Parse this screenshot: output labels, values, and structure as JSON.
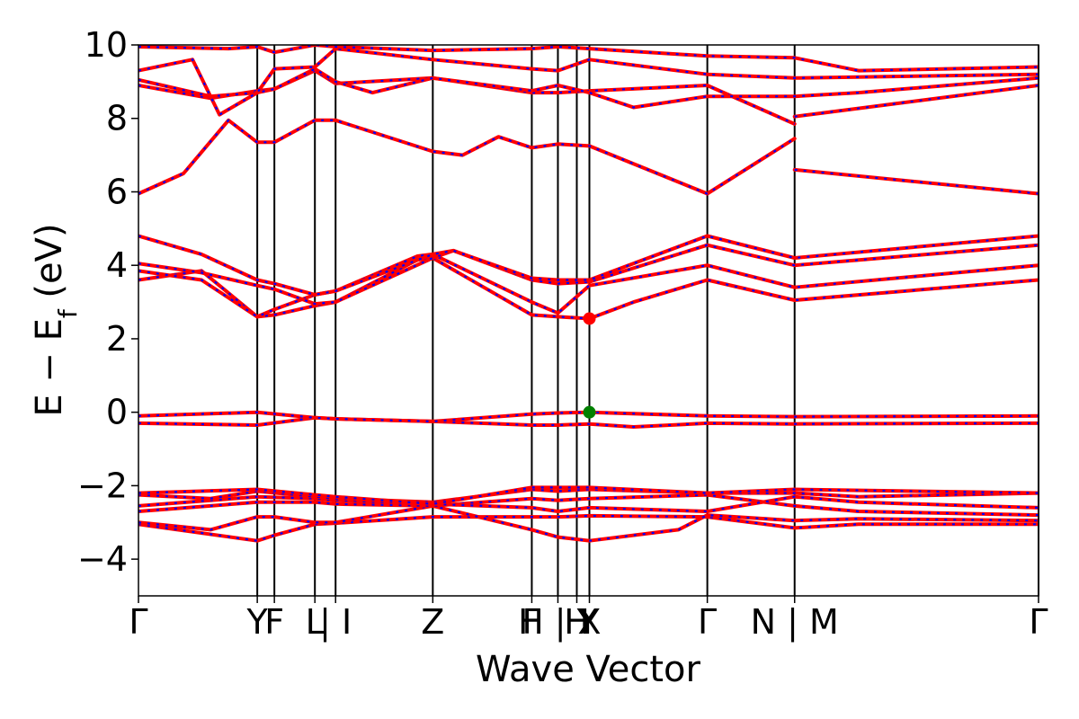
{
  "chart_data": {
    "type": "line",
    "xlabel": "Wave Vector",
    "ylabel": "E − E",
    "ylabel_sub": "f",
    "ylabel_unit": " (eV)",
    "ylim": [
      -5,
      10
    ],
    "xlim": [
      0,
      1
    ],
    "yticks": [
      {
        "value": -4,
        "label": "−4"
      },
      {
        "value": -2,
        "label": "−2"
      },
      {
        "value": 0,
        "label": "0"
      },
      {
        "value": 2,
        "label": "2"
      },
      {
        "value": 4,
        "label": "4"
      },
      {
        "value": 6,
        "label": "6"
      },
      {
        "value": 8,
        "label": "8"
      },
      {
        "value": 10,
        "label": "10"
      }
    ],
    "xticks": [
      {
        "x": 0.0,
        "label": "Γ"
      },
      {
        "x": 0.132,
        "label": "Y"
      },
      {
        "x": 0.151,
        "label": "F"
      },
      {
        "x": 0.196,
        "label": "L"
      },
      {
        "x": 0.219,
        "label": "| I"
      },
      {
        "x": 0.327,
        "label": "Z"
      },
      {
        "x": 0.437,
        "label": "F"
      },
      {
        "x": 0.466,
        "label": "H | Y"
      },
      {
        "x": 0.487,
        "label": "H"
      },
      {
        "x": 0.501,
        "label": "X"
      },
      {
        "x": 0.632,
        "label": "Γ"
      },
      {
        "x": 0.729,
        "label": "N | M"
      },
      {
        "x": 1.0,
        "label": "Γ"
      }
    ],
    "kpath_lines": [
      0.132,
      0.151,
      0.196,
      0.219,
      0.327,
      0.437,
      0.466,
      0.487,
      0.501,
      0.632,
      0.729,
      1.0
    ],
    "series_colors": {
      "primary": "#ff0000",
      "secondary": "#0000ff"
    },
    "bands": [
      {
        "x": [
          0,
          0.132,
          0.151,
          0.196,
          0.219,
          0.327,
          0.437,
          0.466,
          0.501,
          0.632,
          0.729,
          0.8,
          1.0
        ],
        "y": [
          -3.05,
          -3.5,
          -3.35,
          -3.05,
          -3.02,
          -2.85,
          -2.85,
          -2.85,
          -2.82,
          -2.85,
          -3.15,
          -3.05,
          -3.05
        ]
      },
      {
        "x": [
          0,
          0.08,
          0.132,
          0.151,
          0.196,
          0.219,
          0.327,
          0.437,
          0.466,
          0.501,
          0.6,
          0.632,
          0.729,
          0.8,
          1.0
        ],
        "y": [
          -3.0,
          -3.2,
          -2.85,
          -2.85,
          -3.0,
          -3.0,
          -2.55,
          -3.2,
          -3.4,
          -3.5,
          -3.2,
          -2.8,
          -2.95,
          -2.9,
          -2.95
        ]
      },
      {
        "x": [
          0,
          0.132,
          0.196,
          0.219,
          0.327,
          0.437,
          0.466,
          0.501,
          0.632,
          0.729,
          0.8,
          1.0
        ],
        "y": [
          -2.7,
          -2.45,
          -2.45,
          -2.5,
          -2.55,
          -2.35,
          -2.4,
          -2.35,
          -2.25,
          -2.55,
          -2.7,
          -2.8
        ]
      },
      {
        "x": [
          0,
          0.132,
          0.196,
          0.219,
          0.327,
          0.437,
          0.466,
          0.501,
          0.632,
          0.729,
          0.8,
          1.0
        ],
        "y": [
          -2.55,
          -2.3,
          -2.35,
          -2.4,
          -2.5,
          -2.6,
          -2.7,
          -2.6,
          -2.7,
          -2.3,
          -2.45,
          -2.6
        ]
      },
      {
        "x": [
          0,
          0.08,
          0.132,
          0.196,
          0.219,
          0.327,
          0.437,
          0.466,
          0.501,
          0.632,
          0.729,
          0.8,
          1.0
        ],
        "y": [
          -2.25,
          -2.35,
          -2.15,
          -2.3,
          -2.35,
          -2.45,
          -2.1,
          -2.15,
          -2.1,
          -2.2,
          -2.2,
          -2.3,
          -2.2
        ]
      },
      {
        "x": [
          0,
          0.132,
          0.196,
          0.219,
          0.327,
          0.437,
          0.466,
          0.501,
          0.632,
          0.729,
          1.0
        ],
        "y": [
          -2.2,
          -2.1,
          -2.25,
          -2.3,
          -2.5,
          -2.05,
          -2.05,
          -2.05,
          -2.2,
          -2.1,
          -2.2
        ]
      },
      {
        "x": [
          0,
          0.132,
          0.196,
          0.219,
          0.327,
          0.437,
          0.466,
          0.501,
          0.55,
          0.632,
          0.729,
          1.0
        ],
        "y": [
          -0.3,
          -0.35,
          -0.15,
          -0.18,
          -0.25,
          -0.35,
          -0.35,
          -0.32,
          -0.4,
          -0.3,
          -0.32,
          -0.3
        ]
      },
      {
        "x": [
          0,
          0.132,
          0.196,
          0.219,
          0.327,
          0.437,
          0.466,
          0.501,
          0.632,
          0.729,
          1.0
        ],
        "y": [
          -0.1,
          0.0,
          -0.15,
          -0.18,
          -0.25,
          -0.05,
          -0.02,
          0.0,
          -0.1,
          -0.12,
          -0.1
        ]
      },
      {
        "x": [
          0,
          0.07,
          0.132,
          0.151,
          0.196,
          0.219,
          0.31,
          0.327,
          0.437,
          0.466,
          0.501,
          0.55,
          0.632,
          0.729,
          1.0
        ],
        "y": [
          3.6,
          3.85,
          2.6,
          2.65,
          2.9,
          3.0,
          4.15,
          4.2,
          2.65,
          2.6,
          2.55,
          3.0,
          3.6,
          3.05,
          3.6
        ]
      },
      {
        "x": [
          0,
          0.07,
          0.132,
          0.151,
          0.196,
          0.219,
          0.31,
          0.327,
          0.437,
          0.466,
          0.501,
          0.632,
          0.729,
          1.0
        ],
        "y": [
          3.85,
          3.6,
          2.6,
          2.8,
          3.2,
          3.3,
          4.25,
          4.3,
          3.0,
          2.7,
          3.45,
          4.0,
          3.4,
          4.0
        ]
      },
      {
        "x": [
          0,
          0.07,
          0.132,
          0.151,
          0.196,
          0.219,
          0.327,
          0.35,
          0.437,
          0.466,
          0.501,
          0.632,
          0.729,
          1.0
        ],
        "y": [
          4.05,
          3.8,
          3.45,
          3.35,
          2.95,
          3.0,
          4.2,
          4.4,
          3.6,
          3.5,
          3.55,
          4.55,
          4.0,
          4.55
        ]
      },
      {
        "x": [
          0,
          0.07,
          0.132,
          0.151,
          0.196,
          0.219,
          0.327,
          0.35,
          0.437,
          0.466,
          0.501,
          0.632,
          0.729,
          1.0
        ],
        "y": [
          4.8,
          4.3,
          3.6,
          3.5,
          3.2,
          3.3,
          4.3,
          4.4,
          3.65,
          3.6,
          3.6,
          4.8,
          4.2,
          4.8
        ]
      },
      {
        "x": [
          0,
          0.05,
          0.1,
          0.132,
          0.151,
          0.196,
          0.219,
          0.327,
          0.36,
          0.4,
          0.437,
          0.466,
          0.501,
          0.632,
          0.729
        ],
        "y": [
          5.95,
          6.5,
          7.95,
          7.35,
          7.35,
          7.95,
          7.95,
          7.1,
          7.0,
          7.5,
          7.2,
          7.3,
          7.25,
          5.95,
          7.45
        ]
      },
      {
        "x": [
          0.729,
          1.0
        ],
        "y": [
          6.6,
          5.95
        ]
      },
      {
        "x": [
          0,
          0.08,
          0.132,
          0.151,
          0.196,
          0.219,
          0.327,
          0.437,
          0.466,
          0.501,
          0.632,
          0.729
        ],
        "y": [
          8.9,
          8.55,
          8.75,
          8.8,
          9.3,
          8.95,
          9.1,
          8.7,
          8.7,
          8.75,
          8.9,
          7.85
        ]
      },
      {
        "x": [
          0.729,
          1.0
        ],
        "y": [
          8.05,
          8.9
        ]
      },
      {
        "x": [
          0,
          0.08,
          0.132,
          0.151,
          0.196,
          0.219,
          0.26,
          0.327,
          0.437,
          0.466,
          0.501,
          0.55,
          0.632,
          0.729,
          0.8,
          1.0
        ],
        "y": [
          9.05,
          8.6,
          8.7,
          8.8,
          9.35,
          9.0,
          8.7,
          9.1,
          8.75,
          8.9,
          8.7,
          8.3,
          8.6,
          8.6,
          8.7,
          9.1
        ]
      },
      {
        "x": [
          0,
          0.06,
          0.09,
          0.132,
          0.151,
          0.196,
          0.219,
          0.327,
          0.437,
          0.466,
          0.501,
          0.632,
          0.729,
          1.0
        ],
        "y": [
          9.3,
          9.6,
          8.1,
          8.7,
          9.35,
          9.4,
          9.9,
          9.6,
          9.35,
          9.3,
          9.6,
          9.2,
          9.1,
          9.2
        ]
      },
      {
        "x": [
          0,
          0.1,
          0.132,
          0.151,
          0.196,
          0.219,
          0.327,
          0.437,
          0.466,
          0.501,
          0.632,
          0.729,
          0.8,
          1.0
        ],
        "y": [
          9.95,
          9.9,
          9.95,
          9.8,
          10.0,
          9.95,
          9.85,
          9.9,
          9.95,
          9.9,
          9.7,
          9.65,
          9.3,
          9.4
        ]
      }
    ],
    "markers": [
      {
        "x": 0.501,
        "y": 2.55,
        "color": "#ff0000"
      },
      {
        "x": 0.501,
        "y": 0.0,
        "color": "#008000"
      }
    ]
  }
}
